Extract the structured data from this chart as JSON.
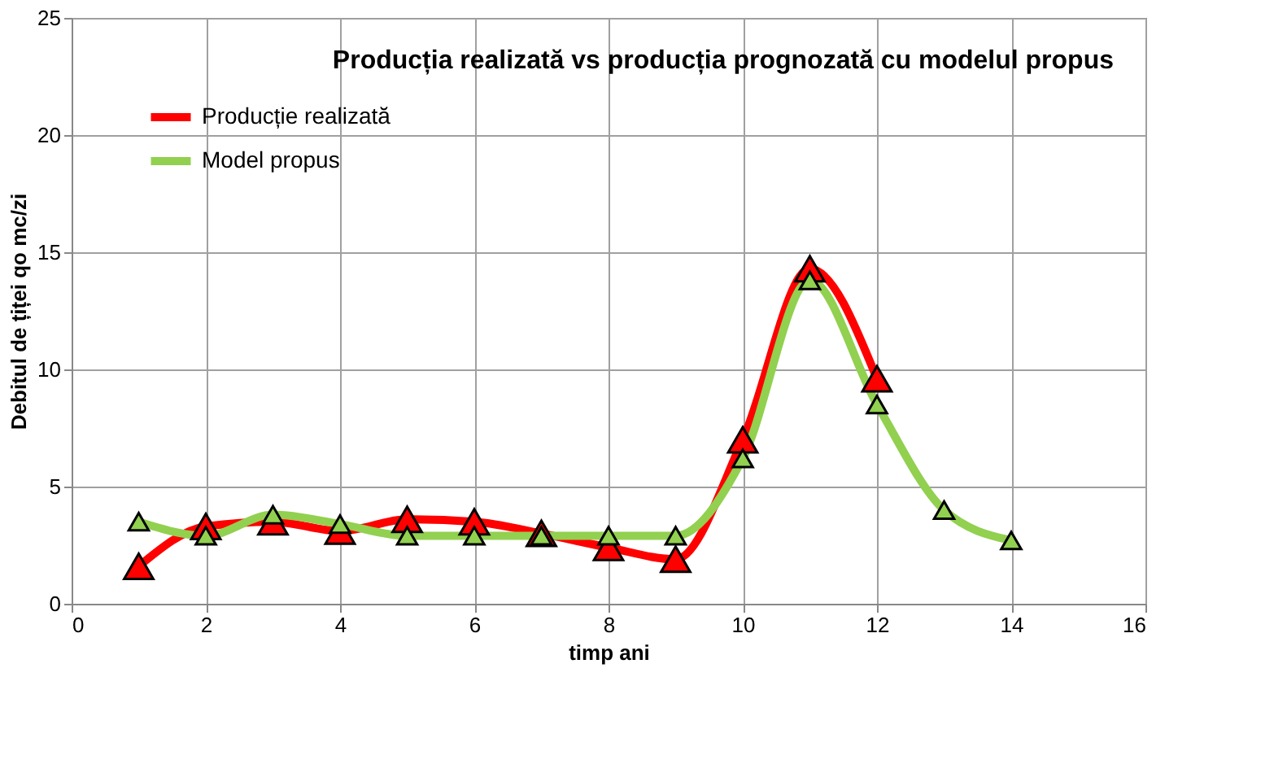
{
  "chart_data": {
    "type": "line",
    "title": "Producția realizată vs producția prognozată cu modelul propus",
    "xlabel": "timp   ani",
    "ylabel": "Debitul de țiței qo  mc/zi",
    "series": [
      {
        "name": "Producție realizată",
        "color": "#ff0000",
        "x": [
          1,
          2,
          3,
          4,
          5,
          6,
          7,
          8,
          9,
          10,
          11,
          12
        ],
        "values": [
          1.6,
          3.3,
          3.5,
          3.1,
          3.6,
          3.5,
          3.0,
          2.4,
          1.9,
          7.0,
          14.3,
          9.6
        ]
      },
      {
        "name": "Model propus",
        "color": "#92d050",
        "x": [
          1,
          2,
          3,
          4,
          5,
          6,
          7,
          8,
          9,
          10,
          11,
          12,
          13,
          14
        ],
        "values": [
          3.5,
          2.9,
          3.8,
          3.4,
          2.9,
          2.9,
          2.9,
          2.9,
          2.9,
          6.2,
          13.8,
          8.5,
          4.0,
          2.7
        ]
      }
    ],
    "xlim": [
      0,
      16
    ],
    "xticks": [
      0,
      2,
      4,
      6,
      8,
      10,
      12,
      14,
      16
    ],
    "ylim": [
      0,
      25
    ],
    "yticks": [
      0,
      5,
      10,
      15,
      20,
      25
    ],
    "grid": true,
    "legend": "top left",
    "marker": "triangle",
    "line_style": "solid"
  }
}
